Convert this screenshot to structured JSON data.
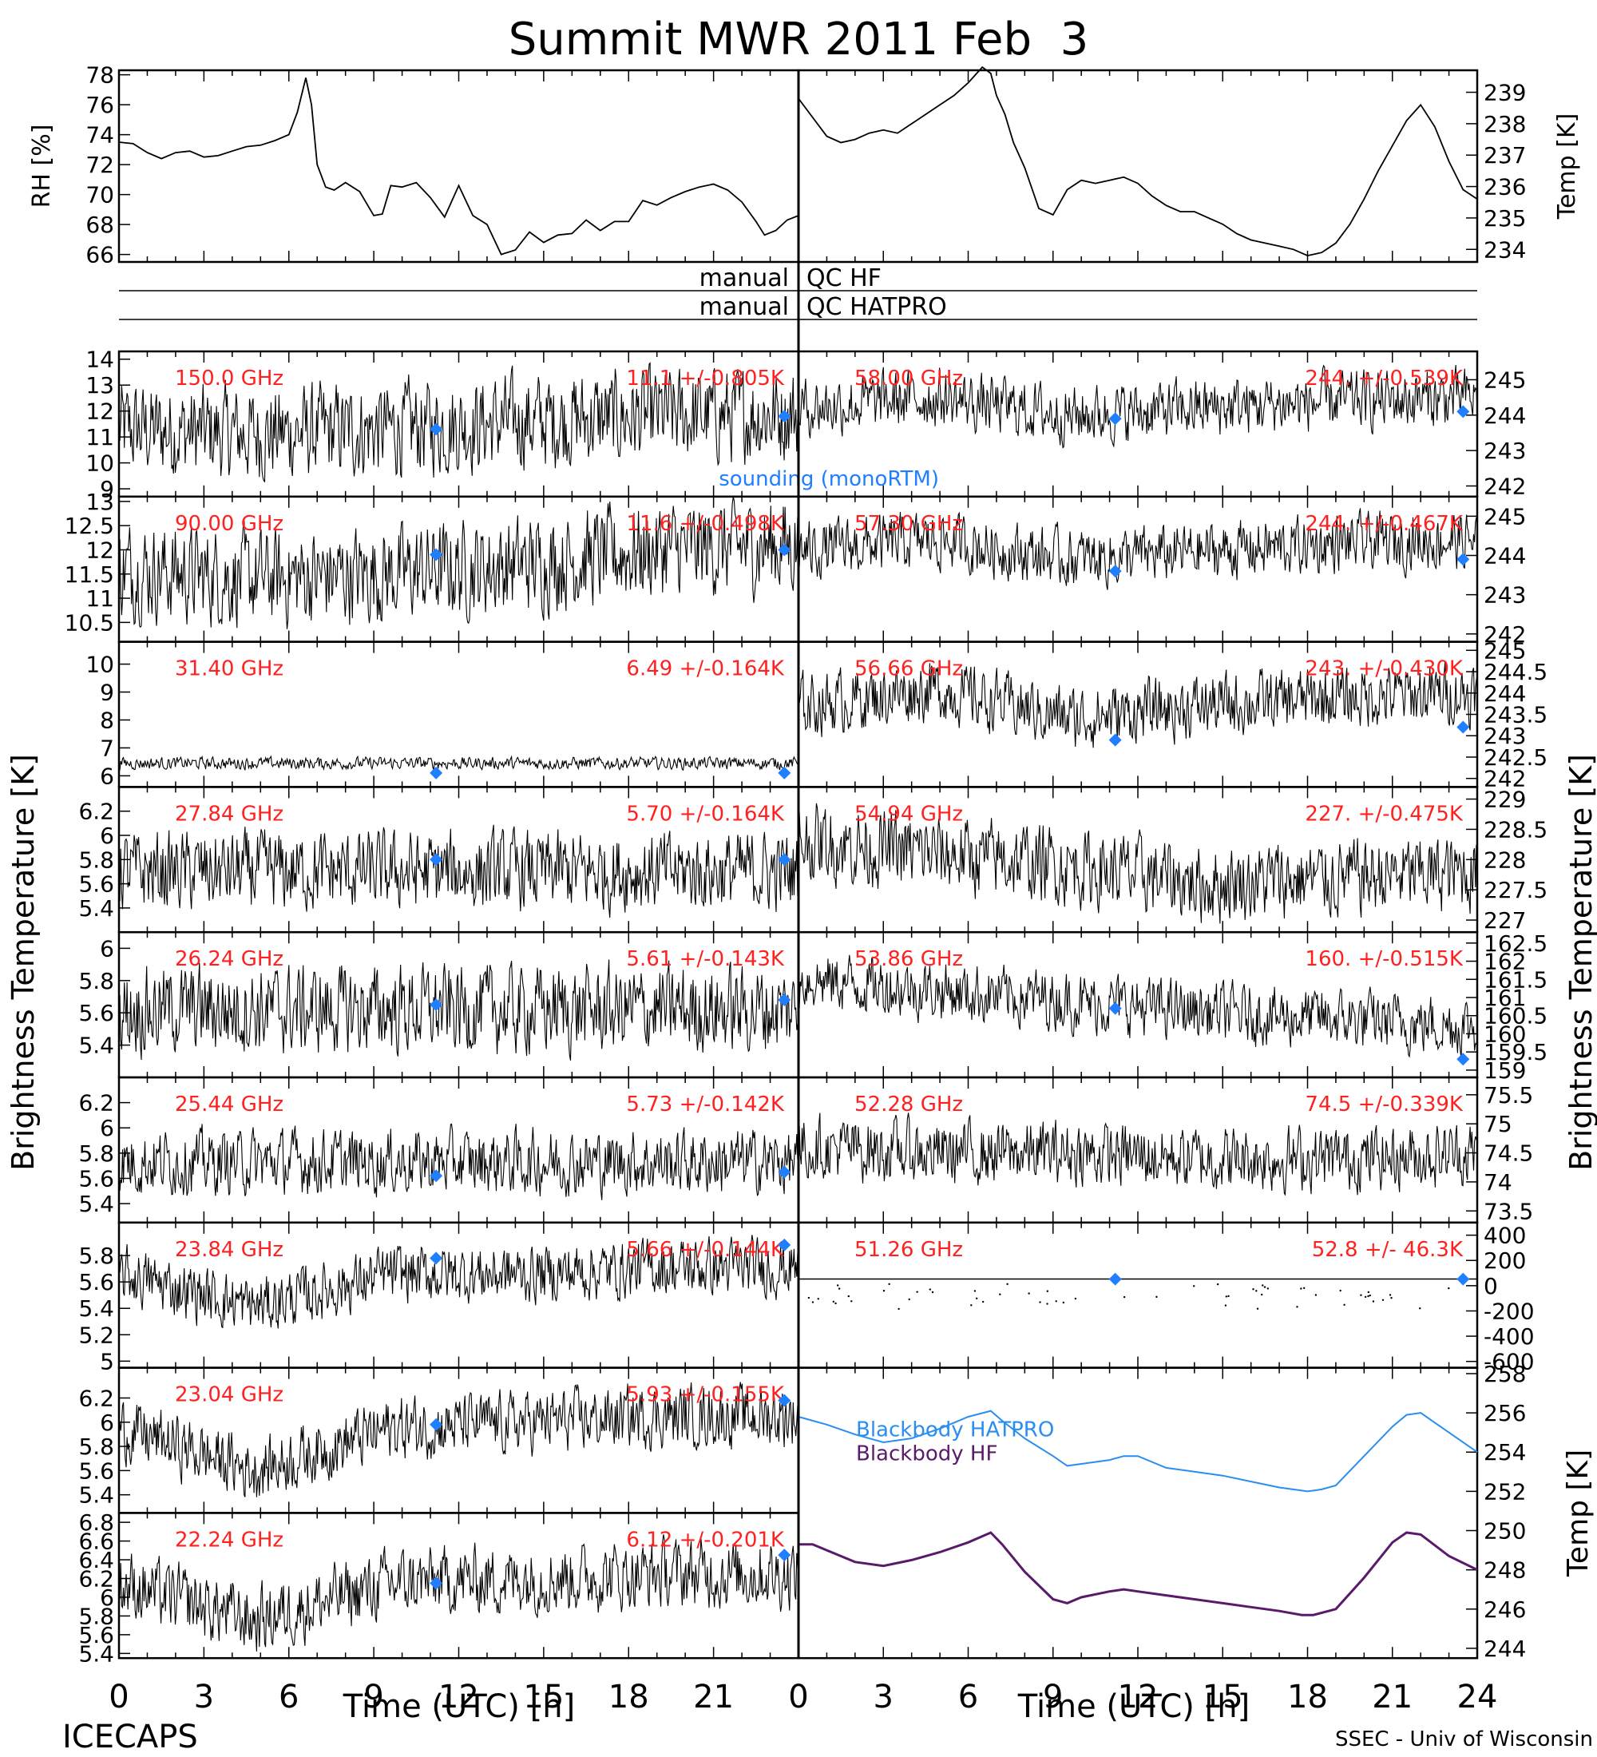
{
  "figure": {
    "title": "Summit MWR 2011 Feb  3",
    "footer_left": "ICECAPS",
    "footer_right": "SSEC - Univ of Wisconsin",
    "ylabel_left": "Brightness Temperature [K]",
    "ylabel_right": "Brightness Temperature [K]",
    "xlabel": "Time (UTC) [h]",
    "x_ticks": [
      0,
      3,
      6,
      9,
      12,
      15,
      18,
      21,
      24
    ],
    "qc_rows": [
      {
        "left": "manual",
        "right": "QC HF"
      },
      {
        "left": "manual",
        "right": "QC HATPRO"
      }
    ],
    "sounding_legend": "sounding (monoRTM)",
    "colors": {
      "trace": "#000000",
      "label": "#ff2020",
      "sounding": "#1f7fff",
      "hatpro": "#2a8ef0",
      "hf": "#5a1a6a"
    }
  },
  "chart_data": [
    {
      "id": "rh",
      "type": "line",
      "ylabel": "RH [%]",
      "ylim": [
        65.5,
        78.3
      ],
      "yticks": [
        66,
        68,
        70,
        72,
        74,
        76,
        78
      ],
      "x": [
        0,
        0.5,
        1,
        1.5,
        2,
        2.5,
        3,
        3.5,
        4,
        4.5,
        5,
        5.5,
        6,
        6.3,
        6.6,
        6.8,
        7,
        7.3,
        7.6,
        8,
        8.5,
        9,
        9.3,
        9.6,
        10,
        10.5,
        11,
        11.5,
        12,
        12.5,
        13,
        13.5,
        14,
        14.5,
        15,
        15.5,
        16,
        16.5,
        17,
        17.5,
        18,
        18.5,
        19,
        19.5,
        20,
        20.5,
        21,
        21.5,
        22,
        22.5,
        22.8,
        23.2,
        23.6,
        24
      ],
      "y": [
        73.5,
        73.4,
        72.8,
        72.4,
        72.8,
        72.9,
        72.5,
        72.6,
        72.9,
        73.2,
        73.3,
        73.6,
        74,
        75.5,
        77.8,
        76,
        72,
        70.5,
        70.3,
        70.8,
        70.2,
        68.6,
        68.7,
        70.6,
        70.5,
        70.8,
        69.8,
        68.5,
        70.6,
        68.6,
        68,
        66,
        66.3,
        67.5,
        66.8,
        67.3,
        67.4,
        68.3,
        67.6,
        68.2,
        68.2,
        69.6,
        69.3,
        69.8,
        70.2,
        70.5,
        70.7,
        70.3,
        69.5,
        68.2,
        67.3,
        67.6,
        68.3,
        68.6
      ]
    },
    {
      "id": "temp",
      "type": "line",
      "ylabel": "Temp [K]",
      "ylim": [
        233.6,
        239.7
      ],
      "yticks": [
        234,
        235,
        236,
        237,
        238,
        239
      ],
      "x": [
        0,
        0.5,
        1,
        1.5,
        2,
        2.5,
        3,
        3.5,
        4,
        4.5,
        5,
        5.5,
        6,
        6.5,
        6.8,
        7,
        7.3,
        7.6,
        8,
        8.5,
        9,
        9.5,
        10,
        10.5,
        11,
        11.5,
        12,
        12.5,
        13,
        13.5,
        14,
        14.5,
        15,
        15.5,
        16,
        16.5,
        17,
        17.5,
        18,
        18.5,
        19,
        19.5,
        20,
        20.5,
        21,
        21.5,
        22,
        22.5,
        23,
        23.5,
        24
      ],
      "y": [
        238.8,
        238.2,
        237.6,
        237.4,
        237.5,
        237.7,
        237.8,
        237.7,
        238,
        238.3,
        238.6,
        238.9,
        239.3,
        239.8,
        239.6,
        238.9,
        238.3,
        237.4,
        236.6,
        235.3,
        235.1,
        235.9,
        236.2,
        236.1,
        236.2,
        236.3,
        236.1,
        235.7,
        235.4,
        235.2,
        235.2,
        235.0,
        234.8,
        234.5,
        234.3,
        234.2,
        234.1,
        234.0,
        233.8,
        233.9,
        234.2,
        234.8,
        235.6,
        236.5,
        237.3,
        238.1,
        238.6,
        237.9,
        236.8,
        235.9,
        235.6
      ]
    },
    {
      "id": "hf150",
      "panel": "left",
      "ylim": [
        8.7,
        14.3
      ],
      "yticks": [
        9,
        10,
        11,
        12,
        13,
        14
      ],
      "freq": "150.0 GHz",
      "stat": "11.1 +/-0.805K",
      "base": 11.3,
      "amp": 1.0,
      "drift": [
        0,
        -0.2,
        0,
        0.3,
        0.5,
        0.6
      ],
      "sounding": [
        [
          11.2,
          11.3
        ],
        [
          23.5,
          11.8
        ]
      ],
      "legend": true
    },
    {
      "id": "hf90",
      "panel": "left",
      "ylim": [
        10.1,
        13.1
      ],
      "yticks": [
        10.5,
        11.0,
        11.5,
        12.0,
        12.5,
        13.0
      ],
      "freq": "90.00 GHz",
      "stat": "11.6 +/-0.498K",
      "base": 11.6,
      "amp": 0.55,
      "drift": [
        0,
        -0.2,
        -0.1,
        0.1,
        0.4,
        0.5
      ],
      "sounding": [
        [
          11.2,
          11.9
        ],
        [
          23.5,
          12.0
        ]
      ]
    },
    {
      "id": "hat3140",
      "panel": "left",
      "ylim": [
        5.6,
        10.8
      ],
      "yticks": [
        6,
        7,
        8,
        9,
        10
      ],
      "freq": "31.40 GHz",
      "stat": "6.49 +/-0.164K",
      "base": 6.45,
      "amp": 0.12,
      "drift": [
        0,
        0,
        0,
        0,
        0,
        0
      ],
      "sounding": [
        [
          11.2,
          6.1
        ],
        [
          23.5,
          6.1
        ]
      ]
    },
    {
      "id": "hat2784",
      "panel": "left",
      "ylim": [
        5.2,
        6.4
      ],
      "yticks": [
        5.4,
        5.6,
        5.8,
        6.0,
        6.2
      ],
      "freq": "27.84 GHz",
      "stat": "5.70 +/-0.164K",
      "base": 5.7,
      "amp": 0.18,
      "drift": [
        0,
        0,
        0,
        0,
        0,
        0
      ],
      "sounding": [
        [
          11.2,
          5.8
        ],
        [
          23.5,
          5.8
        ]
      ]
    },
    {
      "id": "hat2624",
      "panel": "left",
      "ylim": [
        5.2,
        6.1
      ],
      "yticks": [
        5.4,
        5.6,
        5.8,
        6.0
      ],
      "freq": "26.24 GHz",
      "stat": "5.61 +/-0.143K",
      "base": 5.62,
      "amp": 0.15,
      "drift": [
        0,
        0,
        0,
        0,
        0,
        0
      ],
      "sounding": [
        [
          11.2,
          5.65
        ],
        [
          23.5,
          5.68
        ]
      ]
    },
    {
      "id": "hat2544",
      "panel": "left",
      "ylim": [
        5.25,
        6.4
      ],
      "yticks": [
        5.4,
        5.6,
        5.8,
        6.0,
        6.2
      ],
      "freq": "25.44 GHz",
      "stat": "5.73 +/-0.142K",
      "base": 5.73,
      "amp": 0.14,
      "drift": [
        0,
        0,
        0,
        0,
        0,
        0
      ],
      "sounding": [
        [
          11.2,
          5.62
        ],
        [
          23.5,
          5.65
        ]
      ]
    },
    {
      "id": "hat2384",
      "panel": "left",
      "ylim": [
        4.95,
        6.05
      ],
      "yticks": [
        5.0,
        5.2,
        5.4,
        5.6,
        5.8
      ],
      "freq": "23.84 GHz",
      "stat": "5.66 +/-0.144K",
      "base": 5.66,
      "amp": 0.12,
      "drift": [
        0,
        -0.25,
        0,
        0,
        0.05,
        0.05
      ],
      "sounding": [
        [
          11.2,
          5.78
        ],
        [
          23.5,
          5.88
        ]
      ]
    },
    {
      "id": "hat2304",
      "panel": "left",
      "ylim": [
        5.25,
        6.45
      ],
      "yticks": [
        5.4,
        5.6,
        5.8,
        6.0,
        6.2
      ],
      "freq": "23.04 GHz",
      "stat": "5.93 +/-0.155K",
      "base": 5.95,
      "amp": 0.14,
      "drift": [
        0,
        -0.35,
        0,
        0.05,
        0.1,
        0.1
      ],
      "sounding": [
        [
          11.2,
          5.98
        ],
        [
          23.5,
          6.18
        ]
      ]
    },
    {
      "id": "hat2224",
      "panel": "left",
      "ylim": [
        5.35,
        6.9
      ],
      "yticks": [
        5.4,
        5.6,
        5.8,
        6.0,
        6.2,
        6.4,
        6.6,
        6.8
      ],
      "freq": "22.24 GHz",
      "stat": "6.12 +/-0.201K",
      "base": 6.15,
      "amp": 0.2,
      "drift": [
        0,
        -0.4,
        0,
        0.05,
        0.1,
        0.1
      ],
      "sounding": [
        [
          11.2,
          6.15
        ],
        [
          23.5,
          6.45
        ]
      ]
    },
    {
      "id": "hat5800",
      "panel": "right",
      "ylim": [
        241.7,
        245.8
      ],
      "yticks": [
        242,
        243,
        244,
        245
      ],
      "freq": "58.00 GHz",
      "stat": "244. +/-0.539K",
      "base": 244.2,
      "amp": 0.45,
      "drift": [
        0,
        0.3,
        -0.2,
        0,
        0.2,
        0.3
      ],
      "sounding": [
        [
          11.2,
          243.9
        ],
        [
          23.5,
          244.1
        ]
      ]
    },
    {
      "id": "hat5730",
      "panel": "right",
      "ylim": [
        241.8,
        245.5
      ],
      "yticks": [
        242,
        243,
        244,
        245
      ],
      "freq": "57.30 GHz",
      "stat": "244. +/-0.467K",
      "base": 244.1,
      "amp": 0.4,
      "drift": [
        0,
        0.3,
        -0.2,
        0,
        0.2,
        0.3
      ],
      "sounding": [
        [
          11.2,
          243.6
        ],
        [
          23.5,
          243.9
        ]
      ]
    },
    {
      "id": "hat5666",
      "panel": "right",
      "ylim": [
        241.8,
        245.2
      ],
      "yticks": [
        242.0,
        242.5,
        243.0,
        243.5,
        244.0,
        244.5,
        245.0
      ],
      "freq": "56.66 GHz",
      "stat": "243. +/-0.430K",
      "base": 243.7,
      "amp": 0.4,
      "drift": [
        0,
        0.4,
        -0.3,
        0,
        0.2,
        0.3
      ],
      "sounding": [
        [
          11.2,
          242.9
        ],
        [
          23.5,
          243.2
        ]
      ]
    },
    {
      "id": "hat5494",
      "panel": "right",
      "ylim": [
        226.8,
        229.2
      ],
      "yticks": [
        227.0,
        227.5,
        228.0,
        228.5,
        229.0
      ],
      "freq": "54.94 GHz",
      "stat": "227. +/-0.475K",
      "base": 227.9,
      "amp": 0.35,
      "drift": [
        0.4,
        0.2,
        0,
        -0.3,
        -0.2,
        -0.1
      ]
    },
    {
      "id": "hat5386",
      "panel": "right",
      "ylim": [
        158.8,
        162.8
      ],
      "yticks": [
        159.0,
        159.5,
        160.0,
        160.5,
        161.0,
        161.5,
        162.0,
        162.5
      ],
      "freq": "53.86 GHz",
      "stat": "160. +/-0.515K",
      "base": 160.9,
      "amp": 0.45,
      "drift": [
        0.6,
        0.3,
        0,
        -0.3,
        -0.5,
        -0.7
      ],
      "sounding": [
        [
          11.2,
          160.7
        ],
        [
          23.5,
          159.3
        ]
      ]
    },
    {
      "id": "hat5228",
      "panel": "right",
      "ylim": [
        73.3,
        75.8
      ],
      "yticks": [
        73.5,
        74.0,
        74.5,
        75.0,
        75.5
      ],
      "freq": "52.28 GHz",
      "stat": "74.5 +/-0.339K",
      "base": 74.5,
      "amp": 0.3,
      "drift": [
        0.1,
        0,
        0,
        -0.1,
        -0.1,
        0
      ]
    },
    {
      "id": "hat5126",
      "panel": "right",
      "ylim": [
        -650,
        500
      ],
      "yticks": [
        -600,
        -400,
        -200,
        0,
        200,
        400
      ],
      "freq": "51.26 GHz",
      "stat": "52.8 +/- 46.3K",
      "flat": 52.8,
      "sounding": [
        [
          11.2,
          52
        ],
        [
          23.5,
          52
        ]
      ]
    },
    {
      "id": "blackbody",
      "panel": "right",
      "type": "line",
      "ylabel": "Temp [K]",
      "ylim": [
        243.5,
        258.3
      ],
      "yticks": [
        244,
        246,
        248,
        250,
        252,
        254,
        256,
        258
      ],
      "series": [
        {
          "name": "Blackbody HATPRO",
          "color": "#2a8ef0",
          "x": [
            0,
            1,
            2,
            3,
            4,
            5,
            6,
            6.8,
            7.2,
            8,
            9,
            9.5,
            10,
            11,
            11.5,
            12,
            13,
            14,
            15,
            16,
            17,
            18,
            18.5,
            19,
            20,
            21,
            21.5,
            22,
            23,
            24
          ],
          "y": [
            255.8,
            255.4,
            254.9,
            254.5,
            254.7,
            255.2,
            255.8,
            256.1,
            255.6,
            254.7,
            253.8,
            253.3,
            253.4,
            253.6,
            253.8,
            253.8,
            253.2,
            253.0,
            252.8,
            252.5,
            252.2,
            252.0,
            252.1,
            252.3,
            253.8,
            255.3,
            255.9,
            256.0,
            255.0,
            254.0
          ]
        },
        {
          "name": "Blackbody HF",
          "color": "#5a1a6a",
          "x": [
            0,
            0.5,
            1,
            2,
            3,
            4,
            5,
            6,
            6.8,
            7.2,
            8,
            9,
            9.5,
            10,
            11,
            11.5,
            12,
            13,
            14,
            15,
            16,
            17,
            17.8,
            18.2,
            19,
            20,
            21,
            21.5,
            22,
            23,
            24
          ],
          "y": [
            249.3,
            249.3,
            249.0,
            248.4,
            248.2,
            248.5,
            248.9,
            249.4,
            249.9,
            249.3,
            247.9,
            246.5,
            246.3,
            246.6,
            246.9,
            247.0,
            246.9,
            246.7,
            246.5,
            246.3,
            246.1,
            245.9,
            245.7,
            245.7,
            246.0,
            247.6,
            249.4,
            249.9,
            249.8,
            248.7,
            248.0
          ]
        }
      ]
    }
  ]
}
